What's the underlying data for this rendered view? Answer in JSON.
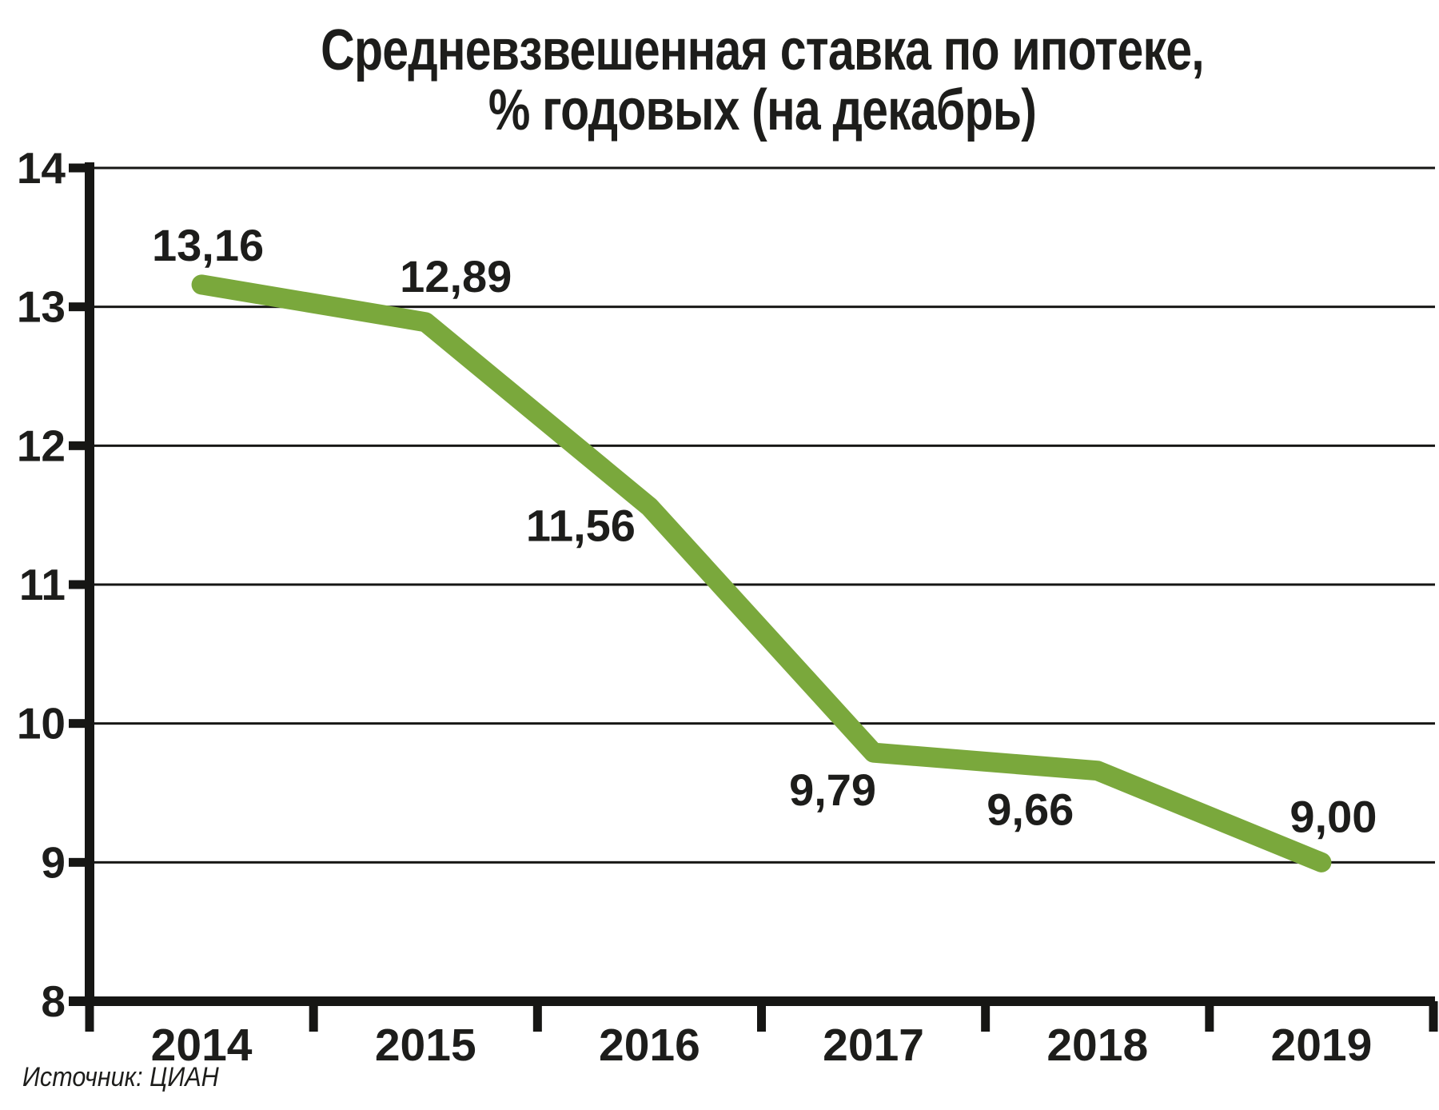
{
  "page": {
    "background": "#ffffff"
  },
  "chart_data": {
    "type": "line",
    "title_lines": [
      "Средневзвешенная ставка по ипотеке,",
      "% годовых (на декабрь)"
    ],
    "categories": [
      "2014",
      "2015",
      "2016",
      "2017",
      "2018",
      "2019"
    ],
    "values": [
      13.16,
      12.89,
      11.56,
      9.79,
      9.66,
      9.0
    ],
    "value_labels": [
      "13,16",
      "12,89",
      "11,56",
      "9,79",
      "9,66",
      "9,00"
    ],
    "ylim": [
      8,
      14
    ],
    "yticks": [
      8,
      9,
      10,
      11,
      12,
      13,
      14
    ],
    "grid": "horizontal",
    "legend": "none",
    "line_color": "#7aa83c",
    "axis_color": "#161614",
    "text_color": "#1d1d1b",
    "source": "Источник: ЦИАН"
  }
}
